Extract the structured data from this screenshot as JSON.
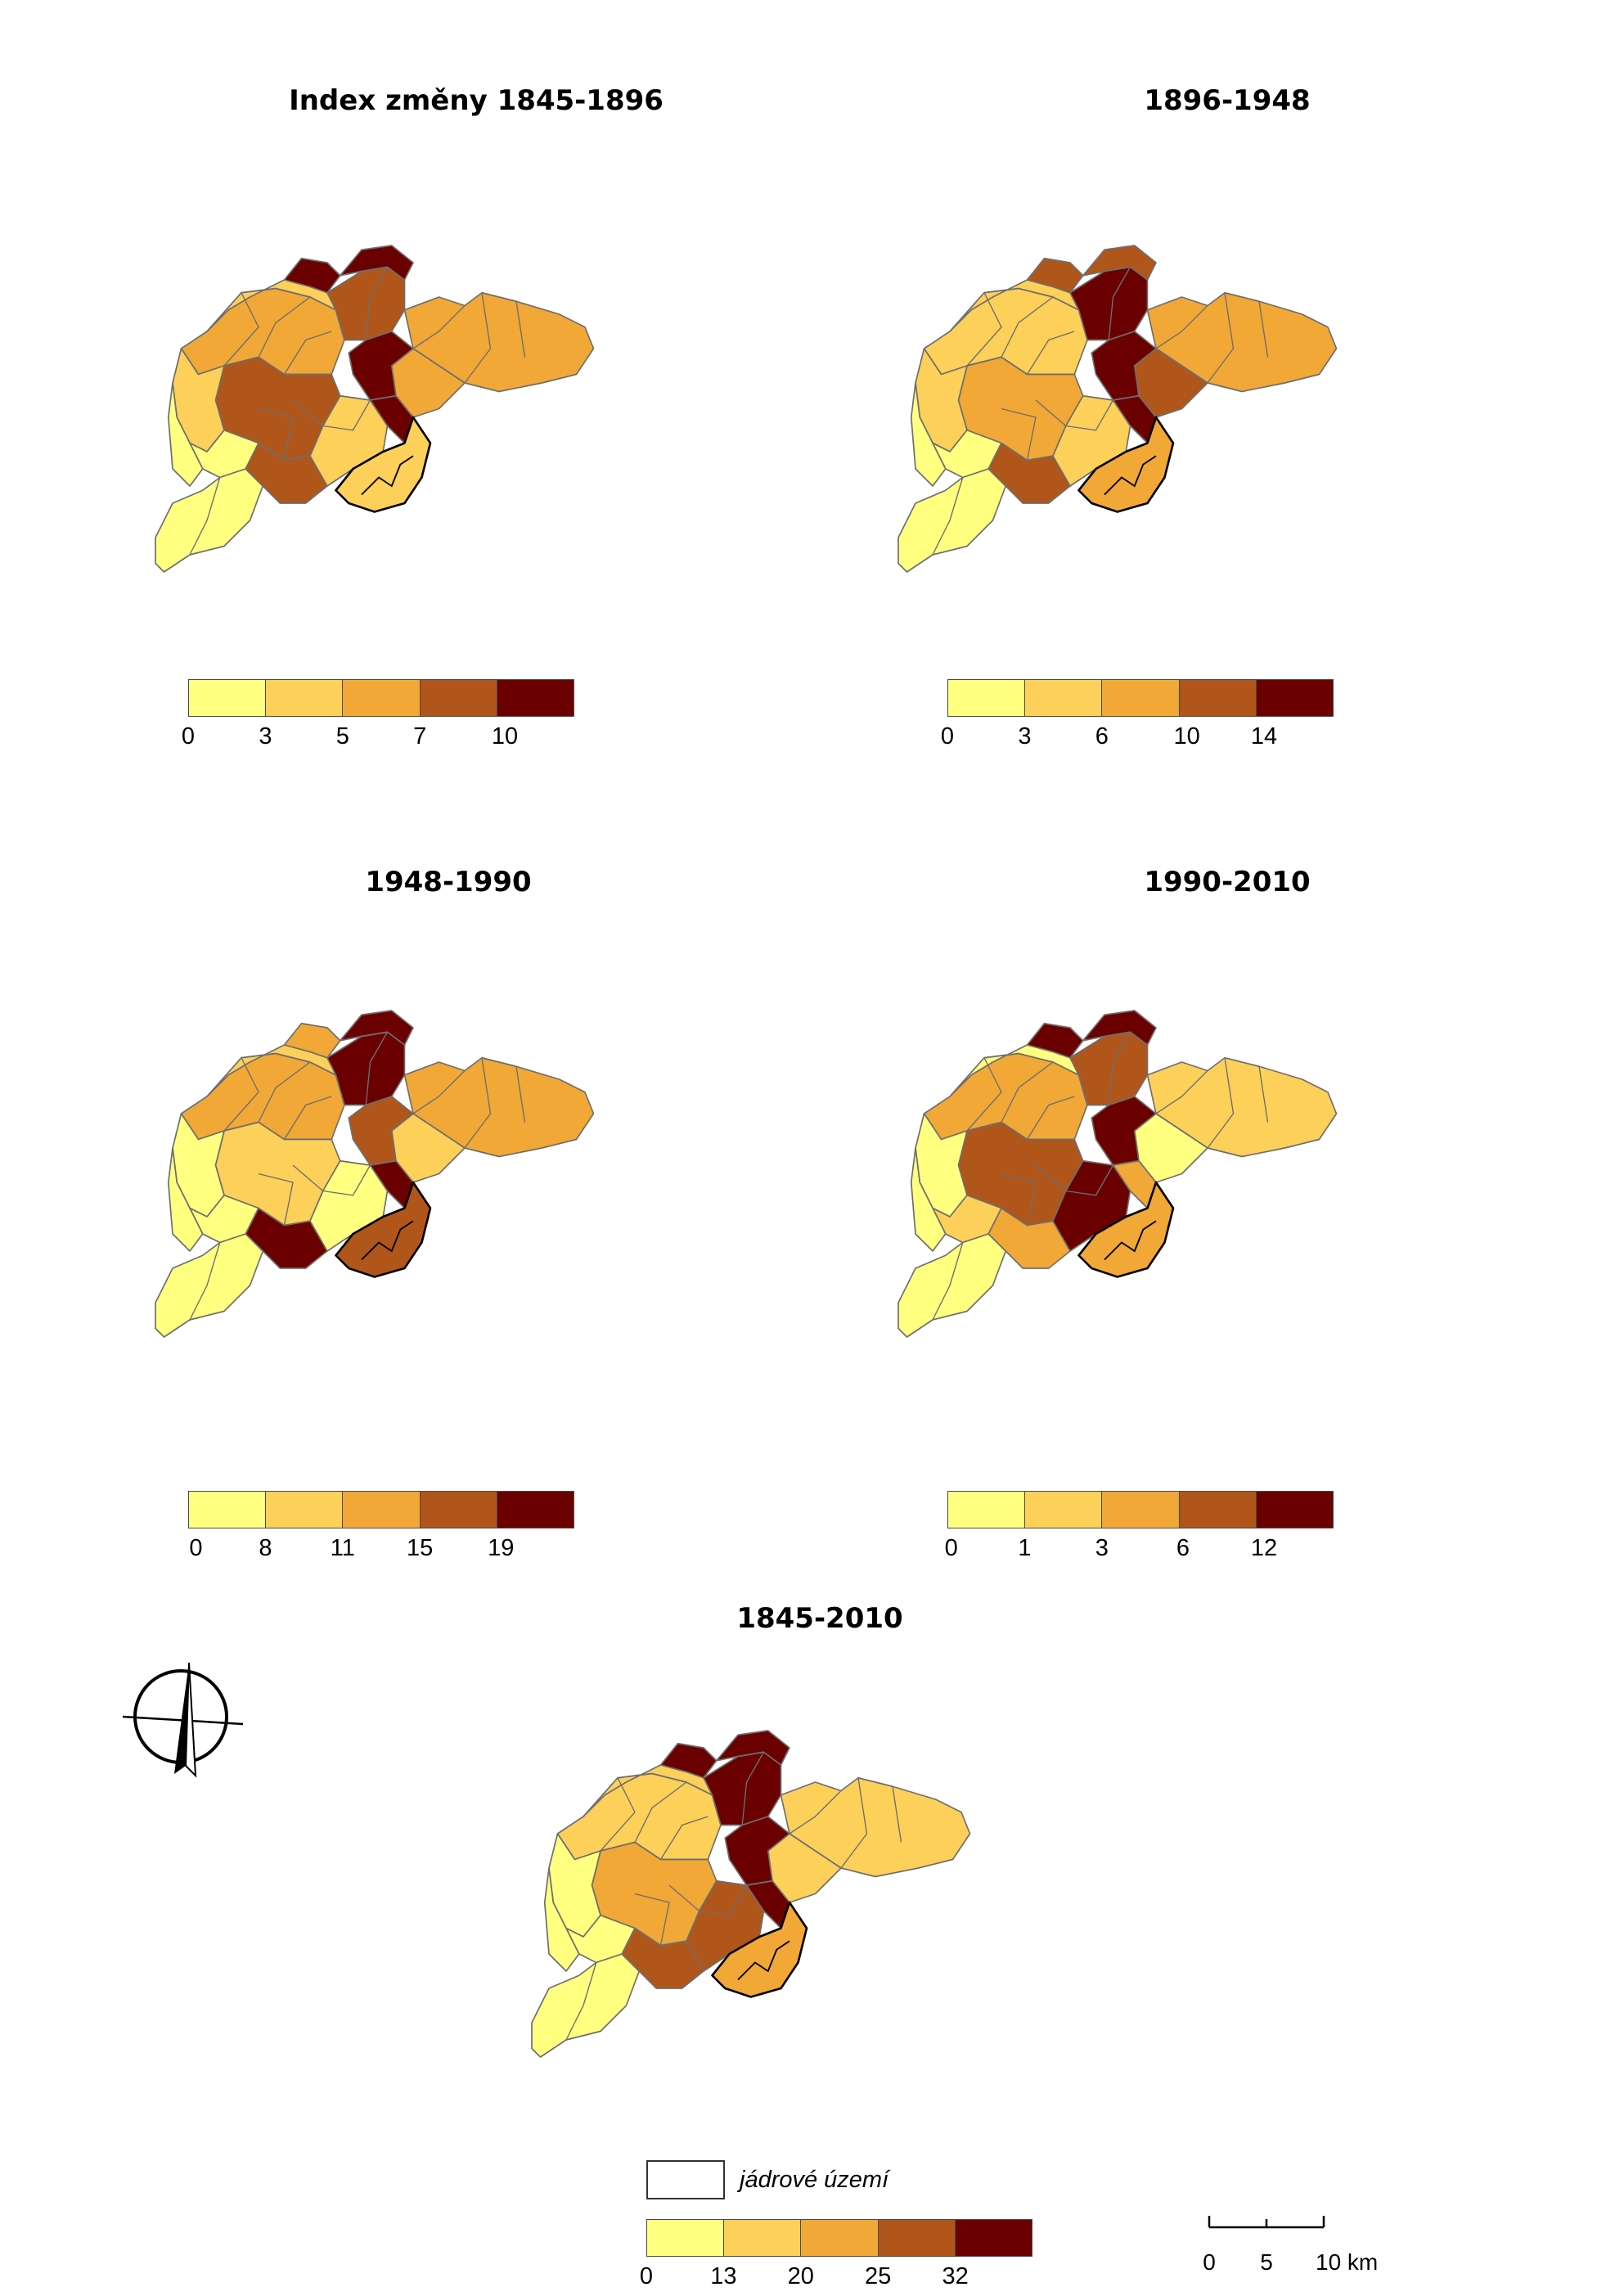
{
  "colors": {
    "c1": "#ffff80",
    "c2": "#fdd05a",
    "c3": "#f1a836",
    "c4": "#b0561a",
    "c5": "#6b0000",
    "outline": "#6e6e6e",
    "core_outline": "#000000"
  },
  "maps": [
    {
      "title": "Index změny 1845-1896",
      "legend_breaks": [
        "0",
        "3",
        "5",
        "7",
        "10"
      ],
      "classes": {
        "east": 2,
        "west": 2,
        "sw": 1,
        "south": 0,
        "nw": 1,
        "nw2": 0,
        "center": 3,
        "cc": 1,
        "n1": 3,
        "n2": 4,
        "n3": 4,
        "n4": 4,
        "spot": 4,
        "core": 1,
        "se": 3,
        "ne": 2,
        "pale": 0
      }
    },
    {
      "title": "1896-1948",
      "legend_breaks": [
        "0",
        "3",
        "6",
        "10",
        "14"
      ],
      "classes": {
        "east": 2,
        "west": 1,
        "sw": 1,
        "south": 0,
        "nw": 1,
        "nw2": 0,
        "center": 2,
        "cc": 1,
        "n1": 4,
        "n2": 4,
        "n3": 3,
        "n4": 3,
        "spot": 4,
        "core": 2,
        "se": 3,
        "ne": 3,
        "pale": 0
      }
    },
    {
      "title": "1948-1990",
      "legend_breaks": [
        "0",
        "8",
        "11",
        "15",
        "19"
      ],
      "classes": {
        "east": 2,
        "west": 2,
        "sw": 0,
        "south": 0,
        "nw": 1,
        "nw2": 0,
        "center": 1,
        "cc": 0,
        "n1": 4,
        "n2": 3,
        "n3": 2,
        "n4": 4,
        "spot": 4,
        "core": 3,
        "se": 4,
        "ne": 1,
        "pale": 0
      }
    },
    {
      "title": "1990-2010",
      "legend_breaks": [
        "0",
        "1",
        "3",
        "6",
        "12"
      ],
      "classes": {
        "east": 1,
        "west": 2,
        "sw": 0,
        "south": 0,
        "nw": 0,
        "nw2": 0,
        "center": 3,
        "cc": 4,
        "n1": 3,
        "n2": 4,
        "n3": 4,
        "n4": 4,
        "spot": 2,
        "core": 2,
        "se": 2,
        "ne": 0,
        "pale": 1
      }
    },
    {
      "title": "1845-2010",
      "legend_breaks": [
        "0",
        "13",
        "20",
        "25",
        "32"
      ],
      "classes": {
        "east": 1,
        "west": 1,
        "sw": 0,
        "south": 0,
        "nw": 1,
        "nw2": 0,
        "center": 2,
        "cc": 3,
        "n1": 4,
        "n2": 4,
        "n3": 4,
        "n4": 4,
        "spot": 4,
        "core": 2,
        "se": 3,
        "ne": 1,
        "pale": 0
      }
    }
  ],
  "core_legend_label": "jádrové území",
  "scalebar": {
    "labels": [
      "0",
      "5",
      "10 km"
    ]
  },
  "north_arrow_icon": "compass-north-arrow-icon"
}
